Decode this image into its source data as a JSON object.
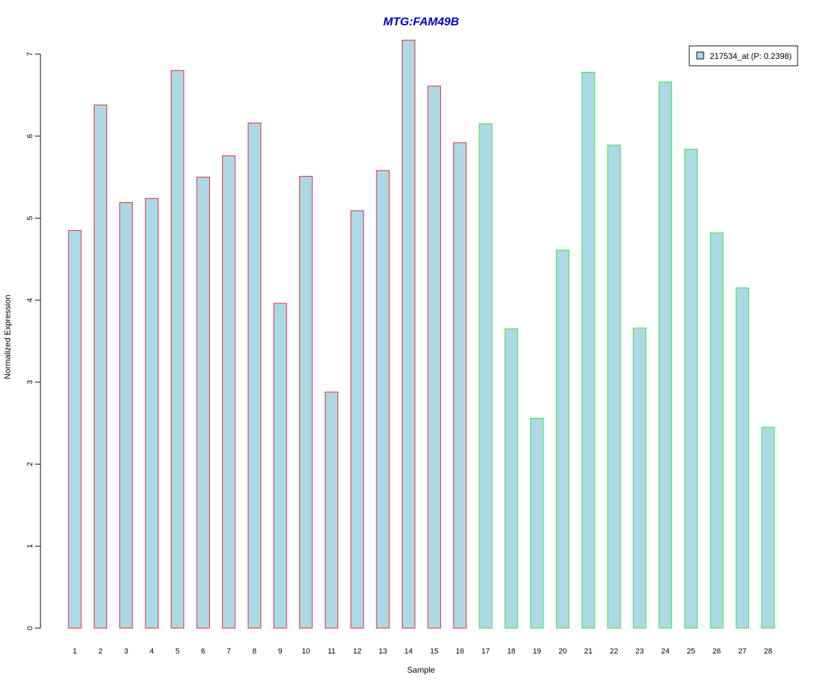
{
  "chart_data": {
    "type": "bar",
    "title": "MTG:FAM49B",
    "xlabel": "Sample",
    "ylabel": "Normalized Expression",
    "ylim": [
      0,
      7
    ],
    "yticks": [
      "0",
      "1",
      "2",
      "3",
      "4",
      "5",
      "6",
      "7"
    ],
    "categories": [
      "1",
      "2",
      "3",
      "4",
      "5",
      "6",
      "7",
      "8",
      "9",
      "10",
      "11",
      "12",
      "13",
      "14",
      "15",
      "16",
      "17",
      "18",
      "19",
      "20",
      "21",
      "22",
      "23",
      "24",
      "25",
      "26",
      "27",
      "28"
    ],
    "series": [
      {
        "name": "217534_at (P: 0.2398)",
        "values": [
          4.85,
          6.38,
          5.19,
          5.24,
          6.8,
          5.5,
          5.76,
          6.16,
          3.96,
          5.51,
          2.88,
          5.09,
          5.58,
          7.17,
          6.61,
          5.92,
          6.15,
          3.65,
          2.56,
          4.61,
          6.78,
          5.89,
          3.66,
          6.66,
          5.84,
          4.82,
          4.15,
          2.45
        ]
      }
    ],
    "groups": [
      {
        "from": 1,
        "to": 16,
        "border_color": "#e8202a"
      },
      {
        "from": 17,
        "to": 28,
        "border_color": "#2ee82e"
      }
    ],
    "fill_color": "#add8e6",
    "title_color": "#0000cd",
    "grid": false,
    "legend_position": "top-right"
  }
}
